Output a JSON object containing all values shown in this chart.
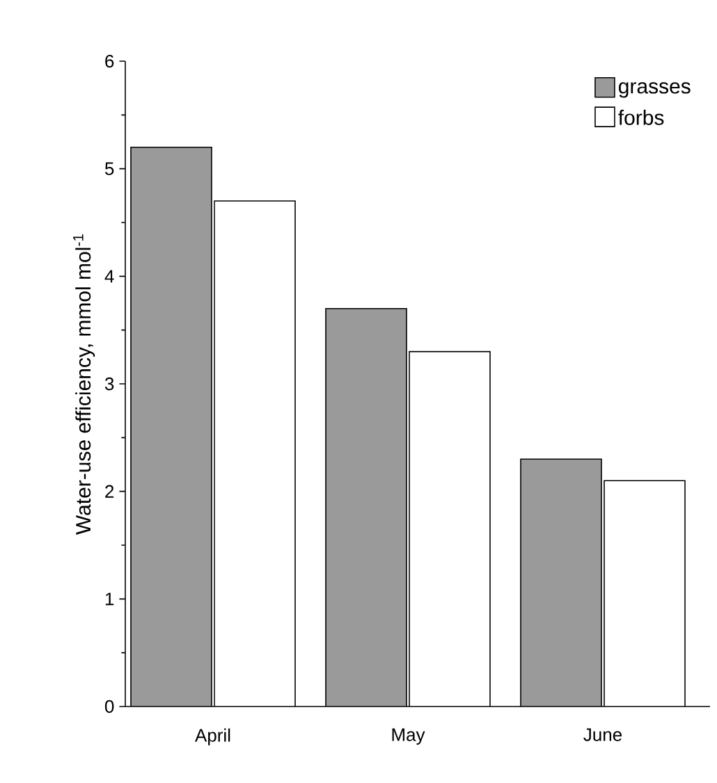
{
  "chart_data": {
    "type": "bar",
    "ylabel": "Water-use efficiency, mmol mol$^{-1}$",
    "categories": [
      "April",
      "May",
      "June"
    ],
    "series": [
      {
        "name": "grasses",
        "color": "#9a9a9a",
        "values": [
          5.2,
          3.7,
          2.3
        ]
      },
      {
        "name": "forbs",
        "color": "#ffffff",
        "values": [
          4.7,
          3.3,
          2.1
        ]
      }
    ],
    "ylim": [
      0,
      6
    ],
    "yticks": [
      0,
      1,
      2,
      3,
      4,
      5,
      6
    ],
    "grid": false,
    "legend": "top right"
  }
}
